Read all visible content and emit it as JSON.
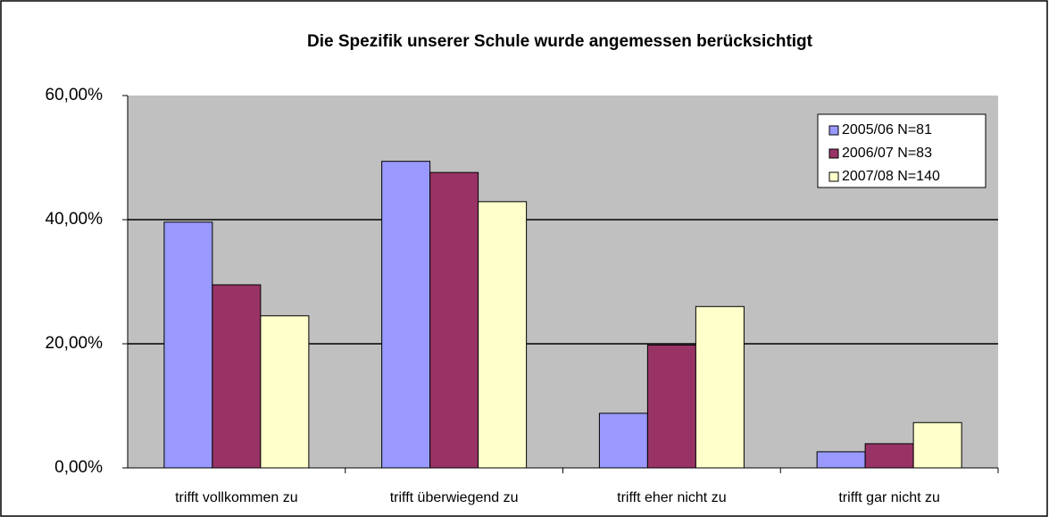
{
  "chart_data": {
    "type": "bar",
    "title": "Die Spezifik unserer Schule wurde angemessen berücksichtigt",
    "categories": [
      "trifft vollkommen zu",
      "trifft überwiegend zu",
      "trifft eher nicht zu",
      "trifft gar nicht zu"
    ],
    "series": [
      {
        "name": "2005/06 N=81",
        "color": "#9999ff",
        "values": [
          39.6,
          49.4,
          8.8,
          2.6
        ]
      },
      {
        "name": "2006/07 N=83",
        "color": "#993366",
        "values": [
          29.5,
          47.6,
          19.8,
          3.9
        ]
      },
      {
        "name": "2007/08 N=140",
        "color": "#ffffcc",
        "values": [
          24.5,
          42.9,
          26.0,
          7.3
        ]
      }
    ],
    "ylim": [
      0,
      60
    ],
    "yticks": [
      {
        "value": 0,
        "label": "0,00%"
      },
      {
        "value": 20,
        "label": "20,00%"
      },
      {
        "value": 40,
        "label": "40,00%"
      },
      {
        "value": 60,
        "label": "60,00%"
      }
    ],
    "grid": true,
    "legend": "top-right",
    "plot_background": "#c0c0c0"
  }
}
